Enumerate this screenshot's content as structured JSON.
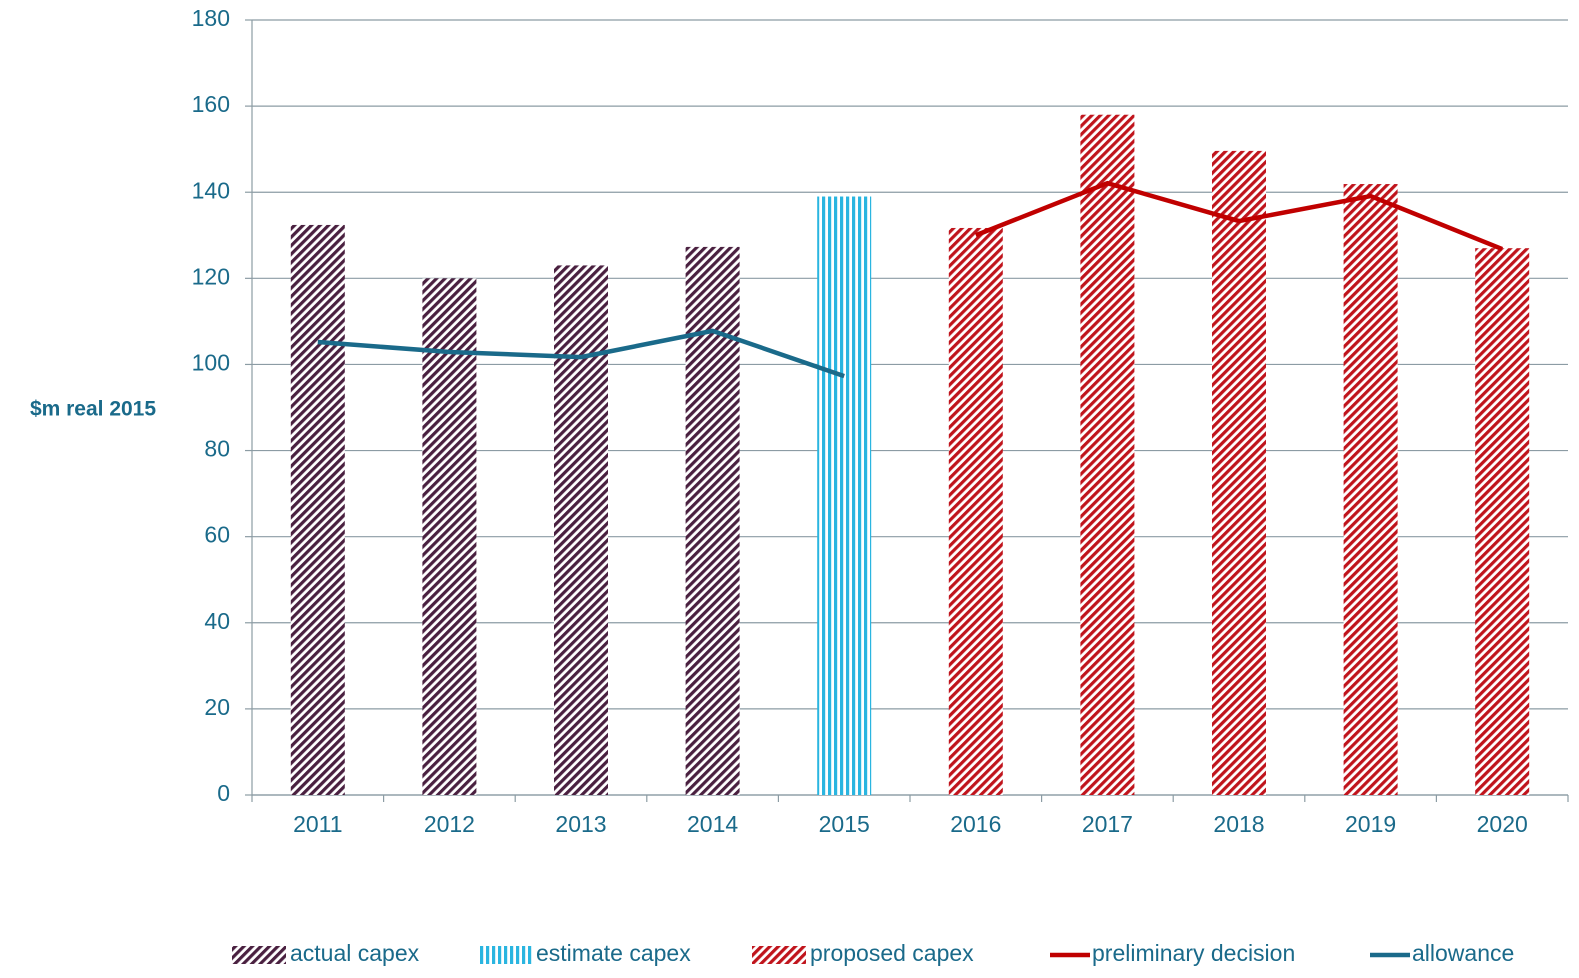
{
  "chart_data": {
    "type": "bar",
    "y_label": "$m real 2015",
    "categories": [
      "2011",
      "2012",
      "2013",
      "2014",
      "2015",
      "2016",
      "2017",
      "2018",
      "2019",
      "2020"
    ],
    "series": [
      {
        "name": "actual capex",
        "type": "bar",
        "pattern": "diagonal",
        "color": "#4a2040",
        "values": [
          132.4,
          120,
          123,
          127.3,
          null,
          null,
          null,
          null,
          null,
          null
        ]
      },
      {
        "name": "estimate capex",
        "type": "bar",
        "pattern": "vertical",
        "color": "#2ab5e0",
        "values": [
          null,
          null,
          null,
          null,
          139,
          null,
          null,
          null,
          null,
          null
        ]
      },
      {
        "name": "proposed capex",
        "type": "bar",
        "pattern": "diagonal",
        "color": "#c0141c",
        "values": [
          null,
          null,
          null,
          null,
          null,
          131.7,
          158,
          149.6,
          141.9,
          127
        ]
      },
      {
        "name": "preliminary decision",
        "type": "line",
        "color": "#c00000",
        "values": [
          null,
          null,
          null,
          null,
          null,
          130,
          142.1,
          133.3,
          139.1,
          126.8
        ]
      },
      {
        "name": "allowance",
        "type": "line",
        "color": "#1a6a8a",
        "values": [
          105.2,
          102.9,
          101.7,
          107.8,
          97.3,
          null,
          null,
          null,
          null,
          null
        ]
      }
    ],
    "ylim": [
      0,
      180
    ],
    "yticks": [
      0,
      20,
      40,
      60,
      80,
      100,
      120,
      140,
      160,
      180
    ],
    "grid": true,
    "legend": "bottom"
  }
}
